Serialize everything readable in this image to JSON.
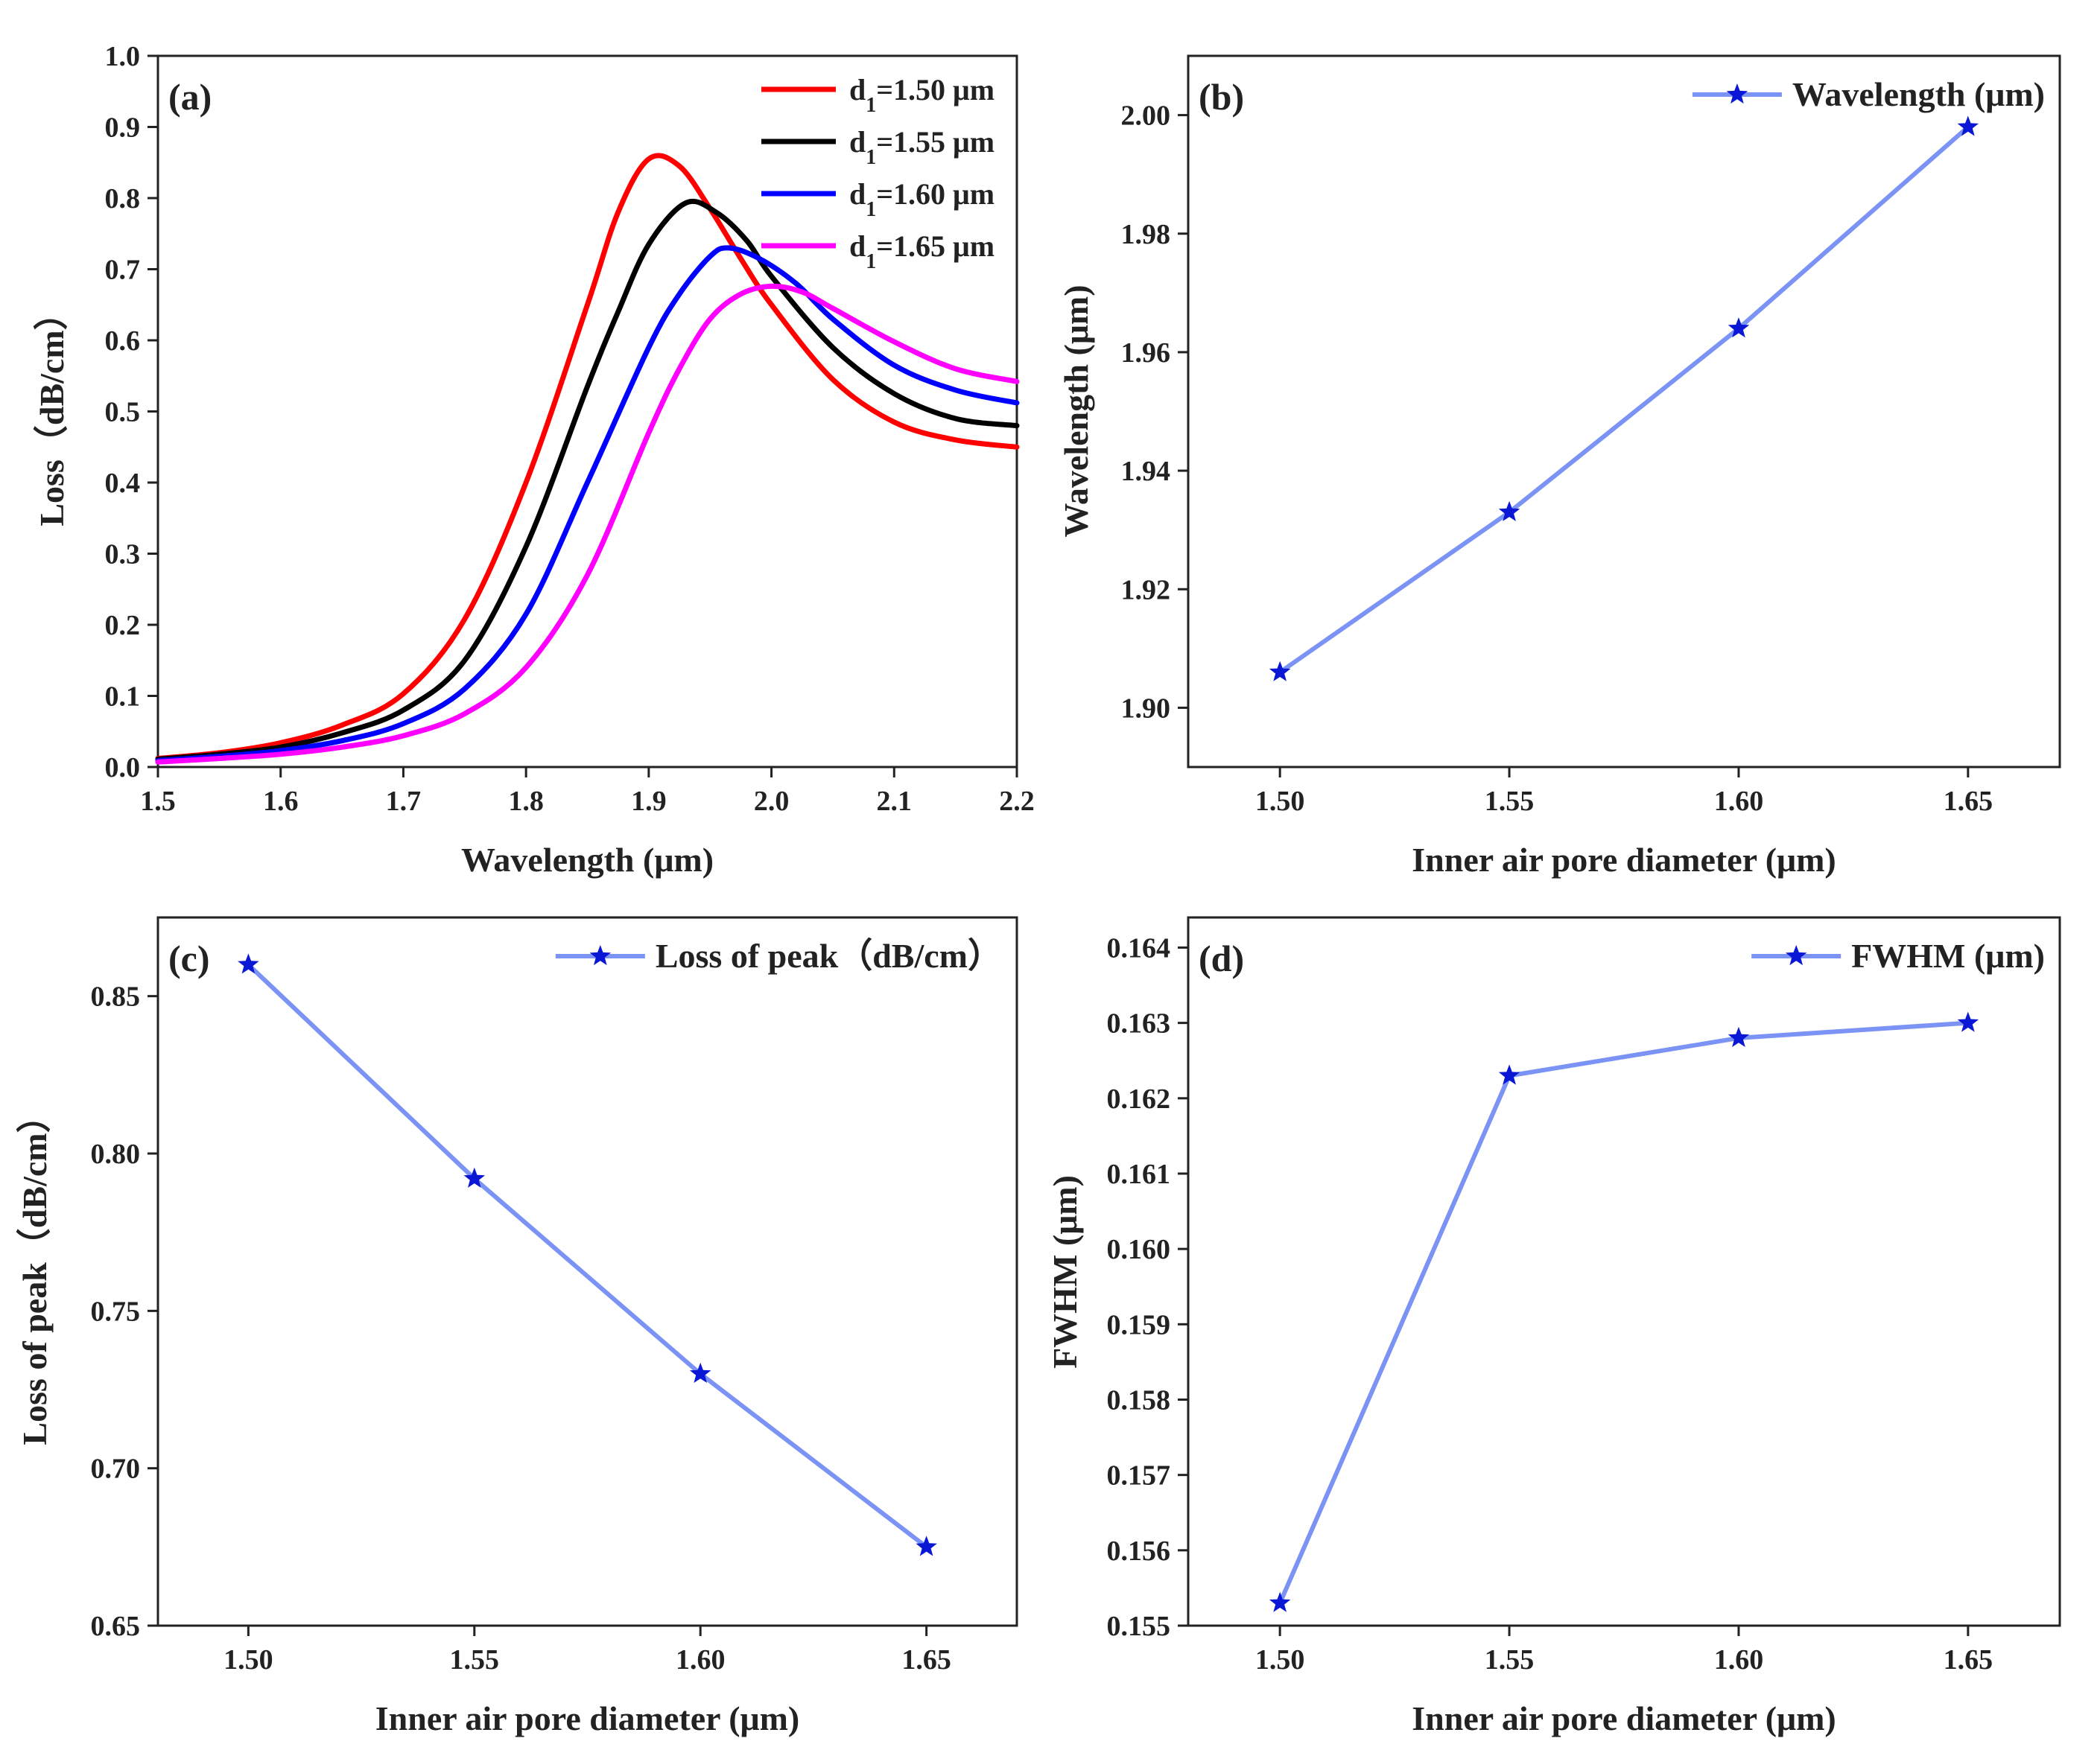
{
  "chart_data": [
    {
      "type": "line",
      "panel": "(a)",
      "xlabel": "Wavelength (μm)",
      "ylabel": "Loss（dB/cm）",
      "xlim": [
        1.5,
        2.2
      ],
      "ylim": [
        0.0,
        1.0
      ],
      "xticks": [
        1.5,
        1.6,
        1.7,
        1.8,
        1.9,
        2.0,
        2.1,
        2.2
      ],
      "yticks": [
        0.0,
        0.1,
        0.2,
        0.3,
        0.4,
        0.5,
        0.6,
        0.7,
        0.8,
        0.9,
        1.0
      ],
      "legend_position": "top-right",
      "grid": false,
      "series": [
        {
          "name": "d1=1.50 μm",
          "name_base": "d",
          "name_sub": "1",
          "name_rest": "=1.50 μm",
          "color": "#ff0000",
          "x": [
            1.5,
            1.55,
            1.6,
            1.65,
            1.7,
            1.75,
            1.8,
            1.85,
            1.875,
            1.9,
            1.925,
            1.95,
            1.975,
            2.0,
            2.05,
            2.1,
            2.15,
            2.2
          ],
          "y": [
            0.012,
            0.02,
            0.034,
            0.059,
            0.103,
            0.208,
            0.4,
            0.65,
            0.78,
            0.855,
            0.845,
            0.785,
            0.715,
            0.65,
            0.545,
            0.485,
            0.46,
            0.45
          ]
        },
        {
          "name": "d1=1.55 μm",
          "name_base": "d",
          "name_sub": "1",
          "name_rest": "=1.55 μm",
          "color": "#000000",
          "x": [
            1.5,
            1.55,
            1.6,
            1.65,
            1.7,
            1.75,
            1.8,
            1.85,
            1.875,
            1.9,
            1.93,
            1.955,
            1.98,
            2.0,
            2.05,
            2.1,
            2.15,
            2.2
          ],
          "y": [
            0.011,
            0.018,
            0.028,
            0.048,
            0.08,
            0.15,
            0.31,
            0.535,
            0.64,
            0.735,
            0.793,
            0.78,
            0.74,
            0.69,
            0.59,
            0.525,
            0.49,
            0.48
          ]
        },
        {
          "name": "d1=1.60 μm",
          "name_base": "d",
          "name_sub": "1",
          "name_rest": "=1.60 μm",
          "color": "#0000ff",
          "x": [
            1.5,
            1.55,
            1.6,
            1.65,
            1.7,
            1.75,
            1.8,
            1.85,
            1.9,
            1.925,
            1.95,
            1.965,
            1.99,
            2.02,
            2.05,
            2.1,
            2.15,
            2.2
          ],
          "y": [
            0.009,
            0.015,
            0.023,
            0.037,
            0.061,
            0.11,
            0.215,
            0.4,
            0.59,
            0.665,
            0.718,
            0.73,
            0.715,
            0.68,
            0.63,
            0.565,
            0.53,
            0.512
          ]
        },
        {
          "name": "d1=1.65 μm",
          "name_base": "d",
          "name_sub": "1",
          "name_rest": "=1.65 μm",
          "color": "#ff00ff",
          "x": [
            1.5,
            1.55,
            1.6,
            1.65,
            1.7,
            1.75,
            1.8,
            1.85,
            1.9,
            1.925,
            1.95,
            1.975,
            2.0,
            2.025,
            2.05,
            2.1,
            2.15,
            2.2
          ],
          "y": [
            0.007,
            0.012,
            0.018,
            0.028,
            0.044,
            0.075,
            0.14,
            0.27,
            0.47,
            0.56,
            0.63,
            0.665,
            0.676,
            0.668,
            0.645,
            0.598,
            0.56,
            0.542
          ]
        }
      ]
    },
    {
      "type": "line",
      "panel": "(b)",
      "xlabel": "Inner air pore diameter (μm)",
      "ylabel": "Wavelength (μm)",
      "xlim": [
        1.48,
        1.67
      ],
      "ylim": [
        1.89,
        2.01
      ],
      "xticks": [
        1.5,
        1.55,
        1.6,
        1.65
      ],
      "yticks": [
        1.9,
        1.92,
        1.94,
        1.96,
        1.98,
        2.0
      ],
      "xdigits": 2,
      "ydigits": 2,
      "legend_position": "top-right",
      "grid": false,
      "series": [
        {
          "name": "Wavelength (μm)",
          "line_color": "#7b93f5",
          "marker_color": "#0a18d6",
          "x": [
            1.5,
            1.55,
            1.6,
            1.65
          ],
          "y": [
            1.906,
            1.933,
            1.964,
            1.998
          ]
        }
      ]
    },
    {
      "type": "line",
      "panel": "(c)",
      "xlabel": "Inner air pore diameter (μm)",
      "ylabel": "Loss of peak（dB/cm）",
      "xlim": [
        1.48,
        1.67
      ],
      "ylim": [
        0.65,
        0.875
      ],
      "xticks": [
        1.5,
        1.55,
        1.6,
        1.65
      ],
      "yticks": [
        0.65,
        0.7,
        0.75,
        0.8,
        0.85
      ],
      "xdigits": 2,
      "ydigits": 2,
      "legend_position": "top-right",
      "grid": false,
      "series": [
        {
          "name": "Loss of peak（dB/cm）",
          "line_color": "#7b93f5",
          "marker_color": "#0a18d6",
          "x": [
            1.5,
            1.55,
            1.6,
            1.65
          ],
          "y": [
            0.86,
            0.792,
            0.73,
            0.675
          ]
        }
      ]
    },
    {
      "type": "line",
      "panel": "(d)",
      "xlabel": "Inner air pore diameter (μm)",
      "ylabel": "FWHM (μm)",
      "xlim": [
        1.48,
        1.67
      ],
      "ylim": [
        0.155,
        0.1644
      ],
      "xticks": [
        1.5,
        1.55,
        1.6,
        1.65
      ],
      "yticks": [
        0.155,
        0.156,
        0.157,
        0.158,
        0.159,
        0.16,
        0.161,
        0.162,
        0.163,
        0.164
      ],
      "xdigits": 2,
      "ydigits": 3,
      "legend_position": "top-right",
      "grid": false,
      "series": [
        {
          "name": "FWHM (μm)",
          "line_color": "#7b93f5",
          "marker_color": "#0a18d6",
          "x": [
            1.5,
            1.55,
            1.6,
            1.65
          ],
          "y": [
            0.1553,
            0.1623,
            0.1628,
            0.163
          ]
        }
      ]
    }
  ]
}
